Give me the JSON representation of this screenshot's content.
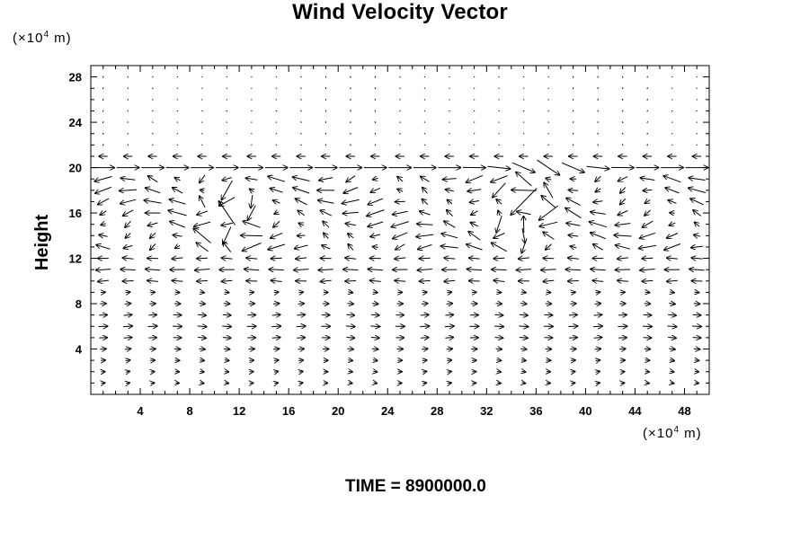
{
  "chart_data": {
    "type": "vector-field",
    "title": "Wind Velocity Vector",
    "ylabel": "Height",
    "xlabel": "",
    "x_unit": {
      "prefix": "(×10",
      "exp": "4",
      "suffix": " m)"
    },
    "y_unit": {
      "prefix": "(×10",
      "exp": "4",
      "suffix": " m)"
    },
    "xlim": [
      0,
      50
    ],
    "ylim": [
      0,
      29
    ],
    "xticks": [
      4,
      8,
      12,
      16,
      20,
      24,
      28,
      32,
      36,
      40,
      44,
      48
    ],
    "yticks": [
      4,
      8,
      12,
      16,
      20,
      24,
      28
    ],
    "grid": false,
    "vectors": {
      "x_start": 1,
      "x_step": 2,
      "x_count": 25,
      "y_start": 1,
      "y_step": 1,
      "y_count": 28
    },
    "time_label": "TIME = 8900000.0"
  }
}
